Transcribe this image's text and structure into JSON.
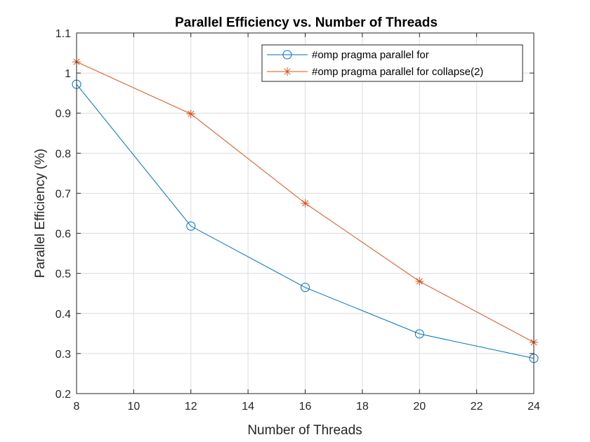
{
  "chart_data": {
    "type": "line",
    "title": "Parallel Efficiency vs. Number of Threads",
    "xlabel": "Number of Threads",
    "ylabel": "Parallel Efficiency (%)",
    "x": [
      8,
      12,
      16,
      20,
      24
    ],
    "xlim": [
      8,
      24
    ],
    "ylim": [
      0.2,
      1.1
    ],
    "xticks": [
      8,
      10,
      12,
      14,
      16,
      18,
      20,
      22,
      24
    ],
    "yticks": [
      0.2,
      0.3,
      0.4,
      0.5,
      0.6,
      0.7,
      0.8,
      0.9,
      1,
      1.1
    ],
    "ytick_labels": [
      "0.2",
      "0.3",
      "0.4",
      "0.5",
      "0.6",
      "0.7",
      "0.8",
      "0.9",
      "1",
      "1.1"
    ],
    "grid": true,
    "legend_position": "top-right",
    "series": [
      {
        "name": "#omp pragma parallel for",
        "values": [
          0.972,
          0.618,
          0.465,
          0.349,
          0.288
        ],
        "color": "#0072BD",
        "marker": "circle"
      },
      {
        "name": "#omp pragma parallel for collapse(2)",
        "values": [
          1.028,
          0.898,
          0.675,
          0.48,
          0.328
        ],
        "color": "#D95319",
        "marker": "asterisk"
      }
    ]
  }
}
